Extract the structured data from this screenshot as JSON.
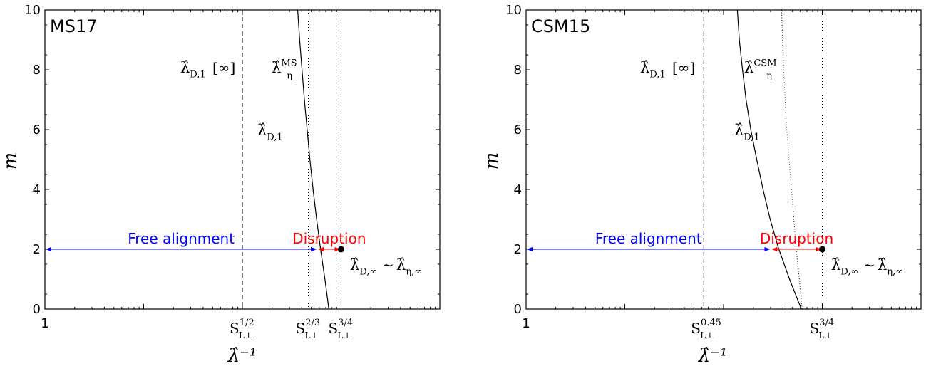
{
  "chart_data": [
    {
      "type": "line",
      "panel_label": "MS17",
      "xlabel": "λ̂⁻¹",
      "ylabel": "m",
      "xscale": "log",
      "x_tick_labels": [
        "1",
        "S^{1/2}_{L⊥}",
        "S^{2/3}_{L⊥}",
        "S^{3/4}_{L⊥}"
      ],
      "yticks": [
        0,
        2,
        4,
        6,
        8,
        10
      ],
      "ylim": [
        0,
        10
      ],
      "grid": false,
      "vertical_lines": [
        {
          "label": "S^{1/2}_{L⊥}",
          "style": "dashed"
        },
        {
          "label": "S^{2/3}_{L⊥}",
          "style": "dotted"
        },
        {
          "label": "S^{3/4}_{L⊥}",
          "style": "dotted"
        }
      ],
      "curves": [
        {
          "label": "λ̂_{D,1}",
          "style": "solid",
          "points": [
            [
              0.64,
              10
            ],
            [
              0.645,
              9
            ],
            [
              0.651,
              8
            ],
            [
              0.657,
              7
            ],
            [
              0.664,
              6
            ],
            [
              0.671,
              5
            ],
            [
              0.679,
              4
            ],
            [
              0.688,
              3
            ],
            [
              0.698,
              2
            ],
            [
              0.709,
              1
            ],
            [
              0.719,
              0
            ]
          ]
        }
      ],
      "curve_labels": [
        "λ̂_{D,1}",
        "λ̂_η^{MS}",
        "λ̂_{D,1}[∞]"
      ],
      "arrows": [
        {
          "label": "Free alignment",
          "color": "#0000ff",
          "from": 0,
          "to": 0.69,
          "y": 2
        },
        {
          "label": "Disruption",
          "color": "#ff0000",
          "from": 0.69,
          "to": 0.75,
          "y": 2
        }
      ],
      "point": {
        "label": "λ̂_{D,∞} ~ λ̂_{η,∞}",
        "y": 2
      }
    },
    {
      "type": "line",
      "panel_label": "CSM15",
      "xlabel": "λ̂⁻¹",
      "ylabel": "m",
      "xscale": "log",
      "x_tick_labels": [
        "1",
        "S^{0.45}_{L⊥}",
        "S^{3/4}_{L⊥}"
      ],
      "yticks": [
        0,
        2,
        4,
        6,
        8,
        10
      ],
      "ylim": [
        0,
        10
      ],
      "grid": false,
      "vertical_lines": [
        {
          "label": "S^{0.45}_{L⊥}",
          "style": "dashed"
        },
        {
          "label": "S^{3/4}_{L⊥}",
          "style": "dotted"
        }
      ],
      "curves": [
        {
          "label": "λ̂_{D,1}",
          "style": "solid",
          "points": [
            [
              0.535,
              10
            ],
            [
              0.54,
              9
            ],
            [
              0.548,
              8
            ],
            [
              0.557,
              7
            ],
            [
              0.569,
              6
            ],
            [
              0.584,
              5
            ],
            [
              0.6,
              4
            ],
            [
              0.618,
              3
            ],
            [
              0.64,
              2
            ],
            [
              0.667,
              1
            ],
            [
              0.697,
              0
            ]
          ]
        },
        {
          "label": "λ̂_η^{CSM}",
          "style": "dotted",
          "points": [
            [
              0.647,
              10
            ],
            [
              0.652,
              8
            ],
            [
              0.66,
              6
            ],
            [
              0.672,
              4
            ],
            [
              0.684,
              2
            ],
            [
              0.692,
              1
            ],
            [
              0.699,
              0
            ]
          ]
        }
      ],
      "curve_labels": [
        "λ̂_{D,1}",
        "λ̂_η^{CSM}",
        "λ̂_{D,1}[∞]"
      ],
      "arrows": [
        {
          "label": "Free alignment",
          "color": "#0000ff",
          "from": 0,
          "to": 0.62,
          "y": 2
        },
        {
          "label": "Disruption",
          "color": "#ff0000",
          "from": 0.62,
          "to": 0.75,
          "y": 2
        }
      ],
      "point": {
        "label": "λ̂_{D,∞} ~ λ̂_{η,∞}",
        "y": 2
      }
    }
  ]
}
